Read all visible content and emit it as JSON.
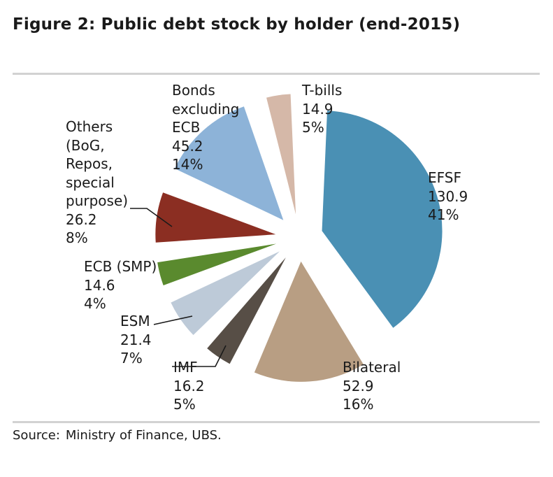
{
  "title": "Figure 2: Public debt stock by holder (end-2015)",
  "source": {
    "label": "Source:",
    "text": "Ministry of Finance, UBS."
  },
  "chart_data": {
    "type": "pie",
    "title": "Figure 2: Public debt stock by holder (end-2015)",
    "slices": [
      {
        "label": "EFSF",
        "value": 130.9,
        "percent": "41%",
        "color": "#4a90b4"
      },
      {
        "label": "Bilateral",
        "value": 52.9,
        "percent": "16%",
        "color": "#b89e83"
      },
      {
        "label": "IMF",
        "value": 16.2,
        "percent": "5%",
        "color": "#574e46"
      },
      {
        "label": "ESM",
        "value": 21.4,
        "percent": "7%",
        "color": "#bdcad8"
      },
      {
        "label": "ECB (SMP)",
        "value": 14.6,
        "percent": "4%",
        "color": "#5a8a2e"
      },
      {
        "label": "Others\n(BoG,\nRepos,\nspecial\npurpose)",
        "value": 26.2,
        "percent": "8%",
        "color": "#8b2e22"
      },
      {
        "label": "Bonds\nexcluding\nECB",
        "value": 45.2,
        "percent": "14%",
        "color": "#8db3d8"
      },
      {
        "label": "T-bills",
        "value": 14.9,
        "percent": "5%",
        "color": "#d5b8a8"
      }
    ]
  }
}
